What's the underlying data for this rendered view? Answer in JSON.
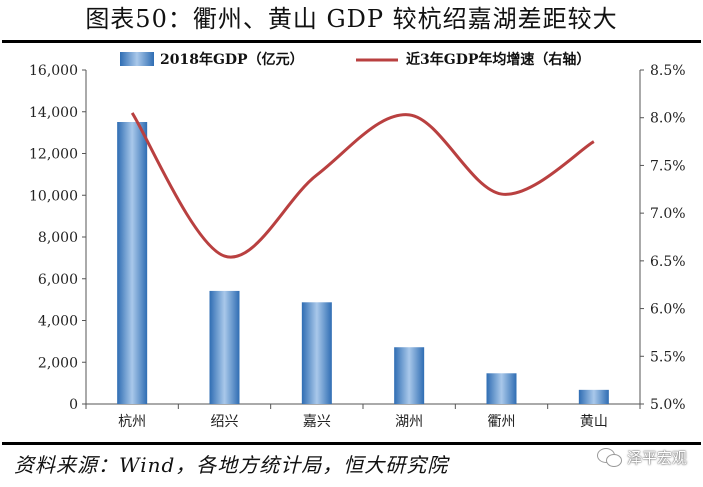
{
  "title": "图表50：衢州、黄山 GDP 较杭绍嘉湖差距较大",
  "source": "资料来源：Wind，各地方统计局，恒大研究院",
  "watermark": "泽平宏观",
  "colors": {
    "bar_light": "#a9c8ea",
    "bar_dark": "#2f6db3",
    "line": "#b94040",
    "axis": "#555555"
  },
  "chart_data": {
    "type": "bar+line",
    "categories": [
      "杭州",
      "绍兴",
      "嘉兴",
      "湖州",
      "衢州",
      "黄山"
    ],
    "series": [
      {
        "name": "2018年GDP（亿元）",
        "type": "bar",
        "axis": "left",
        "values": [
          13509,
          5417,
          4872,
          2719,
          1471,
          678
        ]
      },
      {
        "name": "近3年GDP年均增速（右轴）",
        "type": "line",
        "axis": "right",
        "values": [
          8.05,
          6.55,
          7.4,
          8.03,
          7.2,
          7.75
        ]
      }
    ],
    "left_axis": {
      "min": 0,
      "max": 16000,
      "step": 2000,
      "tick_labels": [
        "0",
        "2,000",
        "4,000",
        "6,000",
        "8,000",
        "10,000",
        "12,000",
        "14,000",
        "16,000"
      ]
    },
    "right_axis": {
      "min": 5.0,
      "max": 8.5,
      "step": 0.5,
      "tick_labels": [
        "5.0%",
        "5.5%",
        "6.0%",
        "6.5%",
        "7.0%",
        "7.5%",
        "8.0%",
        "8.5%"
      ]
    },
    "legend_position": "top",
    "grid": false
  }
}
